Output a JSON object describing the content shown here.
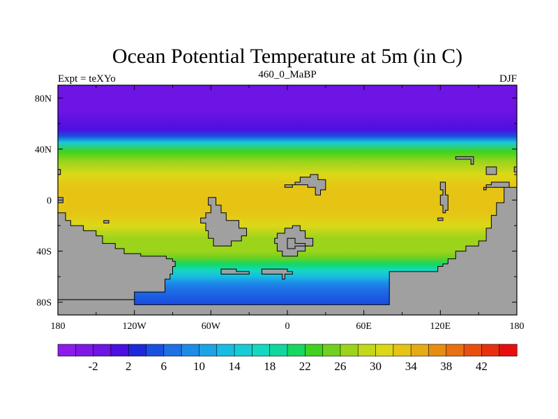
{
  "chart_data": {
    "type": "heatmap",
    "title": "Ocean Potential Temperature at 5m (in C)",
    "left_string": "Expt = teXYo",
    "center_string": "460_0_MaBP",
    "right_string": "DJF",
    "x_ticks": [
      {
        "value": -180,
        "label": "180"
      },
      {
        "value": -120,
        "label": "120W"
      },
      {
        "value": -60,
        "label": "60W"
      },
      {
        "value": 0,
        "label": "0"
      },
      {
        "value": 60,
        "label": "60E"
      },
      {
        "value": 120,
        "label": "120E"
      },
      {
        "value": 180,
        "label": "180"
      }
    ],
    "y_ticks": [
      {
        "value": 80,
        "label": "80N"
      },
      {
        "value": 40,
        "label": "40N"
      },
      {
        "value": 0,
        "label": "0"
      },
      {
        "value": -40,
        "label": "40S"
      },
      {
        "value": -80,
        "label": "80S"
      }
    ],
    "xlim": [
      -180,
      180
    ],
    "ylim": [
      -90,
      90
    ],
    "land_color": "#a0a0a0",
    "colorbar": {
      "min": -6,
      "max": 46,
      "step": 2,
      "tick_labels": [
        {
          "value": -2,
          "label": "-2"
        },
        {
          "value": 2,
          "label": "2"
        },
        {
          "value": 6,
          "label": "6"
        },
        {
          "value": 10,
          "label": "10"
        },
        {
          "value": 14,
          "label": "14"
        },
        {
          "value": 18,
          "label": "18"
        },
        {
          "value": 22,
          "label": "22"
        },
        {
          "value": 26,
          "label": "26"
        },
        {
          "value": 30,
          "label": "30"
        },
        {
          "value": 34,
          "label": "34"
        },
        {
          "value": 38,
          "label": "38"
        },
        {
          "value": 42,
          "label": "42"
        }
      ],
      "colors": [
        "#8c1ce8",
        "#7d18e6",
        "#6e14e4",
        "#4b10e0",
        "#1e28dc",
        "#1a50e0",
        "#1e70e4",
        "#1c8ce8",
        "#1aa4e6",
        "#18bce2",
        "#18ccd6",
        "#14d8c0",
        "#10d89c",
        "#14d860",
        "#40d21e",
        "#70d020",
        "#9cd41c",
        "#c2d818",
        "#dcd818",
        "#e6c414",
        "#e6aa14",
        "#e88c12",
        "#e87012",
        "#e85010",
        "#e8300e",
        "#e80e0e"
      ]
    },
    "zonal_profile": [
      {
        "lat": 90,
        "t": -1.5
      },
      {
        "lat": 70,
        "t": -1.5
      },
      {
        "lat": 55,
        "t": 0
      },
      {
        "lat": 50,
        "t": 5
      },
      {
        "lat": 45,
        "t": 14
      },
      {
        "lat": 38,
        "t": 22
      },
      {
        "lat": 30,
        "t": 27
      },
      {
        "lat": 20,
        "t": 30
      },
      {
        "lat": 10,
        "t": 32
      },
      {
        "lat": 0,
        "t": 33
      },
      {
        "lat": -10,
        "t": 32
      },
      {
        "lat": -20,
        "t": 30
      },
      {
        "lat": -30,
        "t": 27.5
      },
      {
        "lat": -40,
        "t": 26
      },
      {
        "lat": -45,
        "t": 24
      },
      {
        "lat": -50,
        "t": 20
      },
      {
        "lat": -55,
        "t": 16
      },
      {
        "lat": -60,
        "t": 12
      },
      {
        "lat": -65,
        "t": 9
      },
      {
        "lat": -70,
        "t": 7
      },
      {
        "lat": -80,
        "t": 5
      }
    ],
    "land_polygons": [
      [
        [
          -180,
          -10
        ],
        [
          -174,
          -10
        ],
        [
          -174,
          -16
        ],
        [
          -170,
          -16
        ],
        [
          -170,
          -20
        ],
        [
          -160,
          -20
        ],
        [
          -160,
          -24
        ],
        [
          -150,
          -24
        ],
        [
          -150,
          -28
        ],
        [
          -145,
          -28
        ],
        [
          -145,
          -34
        ],
        [
          -135,
          -34
        ],
        [
          -135,
          -38
        ],
        [
          -128,
          -38
        ],
        [
          -128,
          -42
        ],
        [
          -115,
          -42
        ],
        [
          -115,
          -44
        ],
        [
          -95,
          -44
        ],
        [
          -95,
          -46
        ],
        [
          -90,
          -46
        ],
        [
          -90,
          -48
        ],
        [
          -88,
          -48
        ],
        [
          -88,
          -52
        ],
        [
          -90,
          -52
        ],
        [
          -90,
          -58
        ],
        [
          -92,
          -58
        ],
        [
          -92,
          -62
        ],
        [
          -96,
          -62
        ],
        [
          -96,
          -72
        ],
        [
          -120,
          -72
        ],
        [
          -120,
          -78
        ],
        [
          -180,
          -78
        ],
        [
          -180,
          -90
        ],
        [
          -180,
          -90
        ]
      ],
      [
        [
          -180,
          -78
        ],
        [
          -120,
          -78
        ],
        [
          -120,
          -82
        ],
        [
          80,
          -82
        ],
        [
          80,
          -56
        ],
        [
          118,
          -56
        ],
        [
          118,
          -52
        ],
        [
          122,
          -52
        ],
        [
          122,
          -50
        ],
        [
          126,
          -50
        ],
        [
          126,
          -46
        ],
        [
          132,
          -46
        ],
        [
          132,
          -40
        ],
        [
          140,
          -40
        ],
        [
          140,
          -36
        ],
        [
          150,
          -36
        ],
        [
          150,
          -32
        ],
        [
          156,
          -32
        ],
        [
          156,
          -22
        ],
        [
          160,
          -22
        ],
        [
          160,
          -12
        ],
        [
          164,
          -12
        ],
        [
          164,
          -2
        ],
        [
          170,
          -2
        ],
        [
          170,
          10
        ],
        [
          174,
          10
        ],
        [
          174,
          14
        ],
        [
          160,
          14
        ],
        [
          160,
          12
        ],
        [
          156,
          12
        ],
        [
          156,
          8
        ],
        [
          154,
          8
        ],
        [
          154,
          10
        ],
        [
          180,
          10
        ],
        [
          180,
          -90
        ],
        [
          -180,
          -90
        ]
      ],
      [
        [
          -180,
          24
        ],
        [
          -178,
          24
        ],
        [
          -178,
          20
        ],
        [
          -180,
          20
        ]
      ],
      [
        [
          -180,
          2
        ],
        [
          -176,
          2
        ],
        [
          -176,
          -2
        ],
        [
          -180,
          -2
        ]
      ],
      [
        [
          -62,
          2
        ],
        [
          -56,
          2
        ],
        [
          -56,
          -4
        ],
        [
          -52,
          -4
        ],
        [
          -52,
          -10
        ],
        [
          -48,
          -10
        ],
        [
          -48,
          -16
        ],
        [
          -38,
          -16
        ],
        [
          -38,
          -22
        ],
        [
          -32,
          -22
        ],
        [
          -32,
          -28
        ],
        [
          -36,
          -28
        ],
        [
          -36,
          -32
        ],
        [
          -44,
          -32
        ],
        [
          -44,
          -36
        ],
        [
          -58,
          -36
        ],
        [
          -58,
          -30
        ],
        [
          -62,
          -30
        ],
        [
          -62,
          -24
        ],
        [
          -64,
          -24
        ],
        [
          -64,
          -18
        ],
        [
          -68,
          -18
        ],
        [
          -68,
          -14
        ],
        [
          -64,
          -14
        ],
        [
          -64,
          -10
        ],
        [
          -60,
          -10
        ],
        [
          -60,
          -4
        ],
        [
          -62,
          -4
        ]
      ],
      [
        [
          -2,
          -22
        ],
        [
          4,
          -22
        ],
        [
          4,
          -20
        ],
        [
          10,
          -20
        ],
        [
          10,
          -24
        ],
        [
          14,
          -24
        ],
        [
          14,
          -30
        ],
        [
          20,
          -30
        ],
        [
          20,
          -36
        ],
        [
          14,
          -36
        ],
        [
          14,
          -40
        ],
        [
          8,
          -40
        ],
        [
          8,
          -44
        ],
        [
          -4,
          -44
        ],
        [
          -4,
          -40
        ],
        [
          -8,
          -40
        ],
        [
          -8,
          -34
        ],
        [
          -10,
          -34
        ],
        [
          -10,
          -30
        ],
        [
          -8,
          -30
        ],
        [
          -8,
          -26
        ],
        [
          -2,
          -26
        ]
      ],
      [
        [
          0,
          -30
        ],
        [
          6,
          -30
        ],
        [
          6,
          -34
        ],
        [
          14,
          -34
        ],
        [
          14,
          -36
        ],
        [
          6,
          -36
        ],
        [
          6,
          -38
        ],
        [
          0,
          -38
        ]
      ],
      [
        [
          -2,
          12
        ],
        [
          6,
          12
        ],
        [
          6,
          14
        ],
        [
          10,
          14
        ],
        [
          10,
          18
        ],
        [
          18,
          18
        ],
        [
          18,
          20
        ],
        [
          24,
          20
        ],
        [
          24,
          16
        ],
        [
          30,
          16
        ],
        [
          30,
          8
        ],
        [
          26,
          8
        ],
        [
          26,
          4
        ],
        [
          22,
          4
        ],
        [
          22,
          10
        ],
        [
          16,
          10
        ],
        [
          16,
          12
        ],
        [
          4,
          12
        ],
        [
          4,
          10
        ],
        [
          -2,
          10
        ]
      ],
      [
        [
          120,
          14
        ],
        [
          124,
          14
        ],
        [
          124,
          4
        ],
        [
          126,
          4
        ],
        [
          126,
          -8
        ],
        [
          124,
          -8
        ],
        [
          124,
          -10
        ],
        [
          122,
          -10
        ],
        [
          122,
          -4
        ],
        [
          120,
          -4
        ],
        [
          120,
          4
        ],
        [
          122,
          4
        ],
        [
          122,
          8
        ],
        [
          120,
          8
        ]
      ],
      [
        [
          132,
          32
        ],
        [
          144,
          32
        ],
        [
          144,
          28
        ],
        [
          146,
          28
        ],
        [
          146,
          34
        ],
        [
          132,
          34
        ]
      ],
      [
        [
          156,
          26
        ],
        [
          164,
          26
        ],
        [
          164,
          20
        ],
        [
          156,
          20
        ]
      ],
      [
        [
          178,
          26
        ],
        [
          180,
          26
        ],
        [
          180,
          22
        ],
        [
          178,
          22
        ]
      ],
      [
        [
          -144,
          -16
        ],
        [
          -140,
          -16
        ],
        [
          -140,
          -18
        ],
        [
          -144,
          -18
        ]
      ],
      [
        [
          118,
          -14
        ],
        [
          122,
          -14
        ],
        [
          122,
          -16
        ],
        [
          118,
          -16
        ]
      ],
      [
        [
          -52,
          -54
        ],
        [
          -40,
          -54
        ],
        [
          -40,
          -56
        ],
        [
          -30,
          -56
        ],
        [
          -30,
          -58
        ],
        [
          -52,
          -58
        ]
      ],
      [
        [
          -20,
          -54
        ],
        [
          0,
          -54
        ],
        [
          0,
          -56
        ],
        [
          4,
          -56
        ],
        [
          4,
          -58
        ],
        [
          -2,
          -58
        ],
        [
          -2,
          -62
        ],
        [
          -4,
          -62
        ],
        [
          -4,
          -58
        ],
        [
          -20,
          -58
        ]
      ]
    ]
  }
}
